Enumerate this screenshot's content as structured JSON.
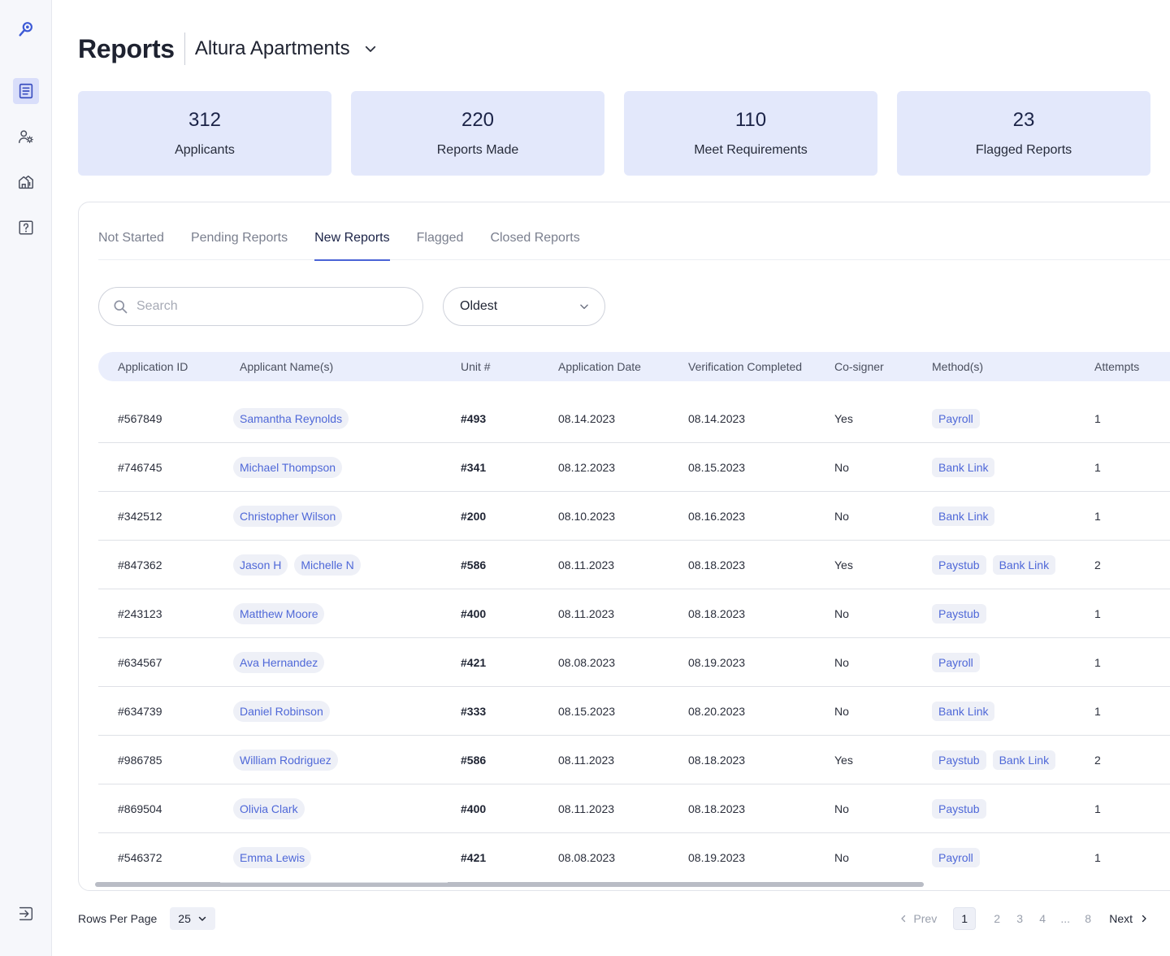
{
  "header": {
    "title": "Reports",
    "property": "Altura Apartments"
  },
  "stats": [
    {
      "value": "312",
      "label": "Applicants"
    },
    {
      "value": "220",
      "label": "Reports Made"
    },
    {
      "value": "110",
      "label": "Meet Requirements"
    },
    {
      "value": "23",
      "label": "Flagged Reports"
    }
  ],
  "tabs": [
    {
      "label": "Not Started"
    },
    {
      "label": "Pending Reports"
    },
    {
      "label": "New Reports"
    },
    {
      "label": "Flagged"
    },
    {
      "label": "Closed Reports"
    }
  ],
  "active_tab": "New Reports",
  "search": {
    "placeholder": "Search",
    "value": ""
  },
  "sort": {
    "value": "Oldest"
  },
  "table": {
    "columns": [
      "Application ID",
      "Applicant Name(s)",
      "Unit #",
      "Application Date",
      "Verification Completed",
      "Co-signer",
      "Method(s)",
      "Attempts"
    ],
    "rows": [
      {
        "id": "#567849",
        "names": [
          "Samantha Reynolds"
        ],
        "unit": "#493",
        "app_date": "08.14.2023",
        "verified": "08.14.2023",
        "cosigner": "Yes",
        "methods": [
          "Payroll"
        ],
        "attempts": "1"
      },
      {
        "id": "#746745",
        "names": [
          "Michael Thompson"
        ],
        "unit": "#341",
        "app_date": "08.12.2023",
        "verified": "08.15.2023",
        "cosigner": "No",
        "methods": [
          "Bank Link"
        ],
        "attempts": "1"
      },
      {
        "id": "#342512",
        "names": [
          "Christopher Wilson"
        ],
        "unit": "#200",
        "app_date": "08.10.2023",
        "verified": "08.16.2023",
        "cosigner": "No",
        "methods": [
          "Bank Link"
        ],
        "attempts": "1"
      },
      {
        "id": "#847362",
        "names": [
          "Jason H",
          "Michelle N"
        ],
        "unit": "#586",
        "app_date": "08.11.2023",
        "verified": "08.18.2023",
        "cosigner": "Yes",
        "methods": [
          "Paystub",
          "Bank Link"
        ],
        "attempts": "2"
      },
      {
        "id": "#243123",
        "names": [
          "Matthew Moore"
        ],
        "unit": "#400",
        "app_date": "08.11.2023",
        "verified": "08.18.2023",
        "cosigner": "No",
        "methods": [
          "Paystub"
        ],
        "attempts": "1"
      },
      {
        "id": "#634567",
        "names": [
          "Ava Hernandez"
        ],
        "unit": "#421",
        "app_date": "08.08.2023",
        "verified": "08.19.2023",
        "cosigner": "No",
        "methods": [
          "Payroll"
        ],
        "attempts": "1"
      },
      {
        "id": "#634739",
        "names": [
          "Daniel Robinson"
        ],
        "unit": "#333",
        "app_date": "08.15.2023",
        "verified": "08.20.2023",
        "cosigner": "No",
        "methods": [
          "Bank Link"
        ],
        "attempts": "1"
      },
      {
        "id": "#986785",
        "names": [
          "William Rodriguez"
        ],
        "unit": "#586",
        "app_date": "08.11.2023",
        "verified": "08.18.2023",
        "cosigner": "Yes",
        "methods": [
          "Paystub",
          "Bank Link"
        ],
        "attempts": "2"
      },
      {
        "id": "#869504",
        "names": [
          "Olivia Clark"
        ],
        "unit": "#400",
        "app_date": "08.11.2023",
        "verified": "08.18.2023",
        "cosigner": "No",
        "methods": [
          "Paystub"
        ],
        "attempts": "1"
      },
      {
        "id": "#546372",
        "names": [
          "Emma Lewis"
        ],
        "unit": "#421",
        "app_date": "08.08.2023",
        "verified": "08.19.2023",
        "cosigner": "No",
        "methods": [
          "Payroll"
        ],
        "attempts": "1"
      }
    ]
  },
  "footer": {
    "rows_per_page_label": "Rows Per Page",
    "rows_per_page_value": "25",
    "prev_label": "Prev",
    "next_label": "Next",
    "pages": [
      "1",
      "2",
      "3",
      "4"
    ],
    "ellipsis": "...",
    "last_page": "8",
    "current_page": "1"
  },
  "icons": {
    "sidebar": [
      "logo-icon",
      "reports-icon",
      "users-settings-icon",
      "properties-icon",
      "help-icon",
      "logout-icon"
    ]
  },
  "colors": {
    "accent": "#4a63d6",
    "card_bg": "#e3e8fb",
    "chip_text": "#4f68d8"
  }
}
